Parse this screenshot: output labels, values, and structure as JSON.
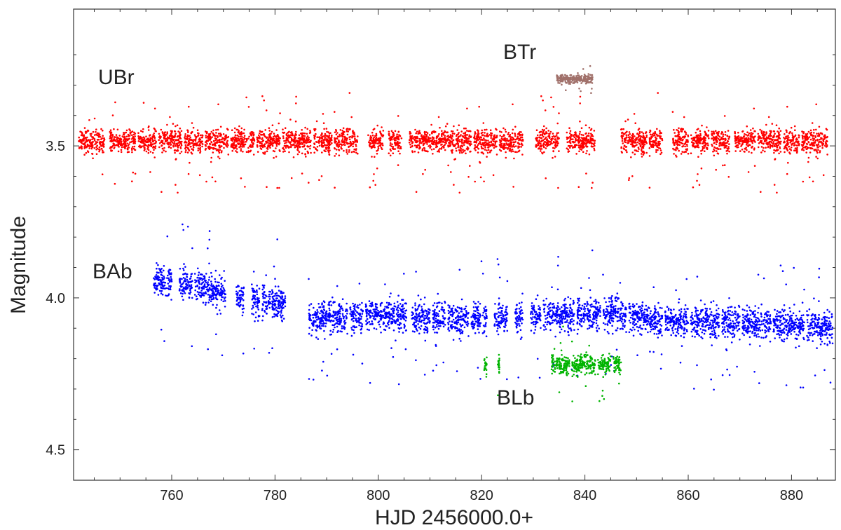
{
  "chart_data": {
    "type": "scatter",
    "title": "",
    "xlabel": "HJD 2456000.0+",
    "ylabel": "Magnitude",
    "xlim": [
      741,
      888.5
    ],
    "ylim": [
      4.6,
      3.05
    ],
    "y_inverted": true,
    "grid": false,
    "x_ticks": [
      "760",
      "780",
      "800",
      "820",
      "840",
      "860",
      "880"
    ],
    "y_ticks": [
      "3.5",
      "4.0",
      "4.5"
    ],
    "series": [
      {
        "name": "UBr",
        "color": "#ff0000",
        "base_mag": 3.485,
        "spread": 0.038,
        "segments": [
          [
            742,
            747
          ],
          [
            748,
            753
          ],
          [
            753.5,
            757
          ],
          [
            757.5,
            762
          ],
          [
            762.5,
            766
          ],
          [
            766.5,
            771
          ],
          [
            771.5,
            776
          ],
          [
            776.5,
            781
          ],
          [
            781.5,
            787
          ],
          [
            787.5,
            791
          ],
          [
            791.5,
            796
          ],
          [
            798,
            801
          ],
          [
            802,
            804.5
          ],
          [
            806,
            818
          ],
          [
            818.5,
            823
          ],
          [
            823.5,
            828
          ],
          [
            830.5,
            835
          ],
          [
            836.5,
            842
          ],
          [
            847,
            852
          ],
          [
            852.5,
            855
          ],
          [
            857,
            860
          ],
          [
            860.5,
            864
          ],
          [
            864.5,
            868
          ],
          [
            869,
            873
          ],
          [
            873.5,
            878
          ],
          [
            878.5,
            881.5
          ],
          [
            882,
            887
          ]
        ]
      },
      {
        "name": "BAb",
        "color": "#0000ff",
        "base_mag": 4.0,
        "spread": 0.05,
        "segments": [
          [
            756.5,
            760
          ],
          [
            761.5,
            764
          ],
          [
            764.5,
            770.5
          ],
          [
            772.5,
            774
          ],
          [
            775.5,
            777
          ],
          [
            777.5,
            782
          ],
          [
            786.5,
            794
          ],
          [
            794.5,
            797
          ],
          [
            797.5,
            805.5
          ],
          [
            806.5,
            810
          ],
          [
            810.5,
            813
          ],
          [
            813.5,
            817.5
          ],
          [
            818,
            821
          ],
          [
            822.5,
            825
          ],
          [
            826.5,
            828
          ],
          [
            829.5,
            831.5
          ],
          [
            832,
            838
          ],
          [
            838.5,
            843
          ],
          [
            843.5,
            848
          ],
          [
            848.5,
            855
          ],
          [
            855.5,
            860
          ],
          [
            860.5,
            866
          ],
          [
            866.5,
            870
          ],
          [
            870.5,
            876
          ],
          [
            876.5,
            882.5
          ],
          [
            883,
            888
          ]
        ],
        "trend": [
          [
            756,
            3.94
          ],
          [
            765,
            3.96
          ],
          [
            772,
            4.0
          ],
          [
            782,
            4.02
          ],
          [
            787,
            4.07
          ],
          [
            800,
            4.06
          ],
          [
            820,
            4.07
          ],
          [
            845,
            4.05
          ],
          [
            855,
            4.08
          ],
          [
            870,
            4.08
          ],
          [
            888,
            4.1
          ]
        ]
      },
      {
        "name": "BLb",
        "color": "#00b400",
        "base_mag": 4.22,
        "spread": 0.03,
        "segments": [
          [
            820.5,
            821
          ],
          [
            823,
            823.5
          ],
          [
            833.5,
            837
          ],
          [
            837.5,
            842
          ],
          [
            842.5,
            845
          ],
          [
            845.5,
            847
          ]
        ]
      },
      {
        "name": "BTr",
        "color": "#a0706a",
        "base_mag": 3.28,
        "spread": 0.015,
        "segments": [
          [
            834.5,
            841.5
          ]
        ]
      }
    ]
  }
}
